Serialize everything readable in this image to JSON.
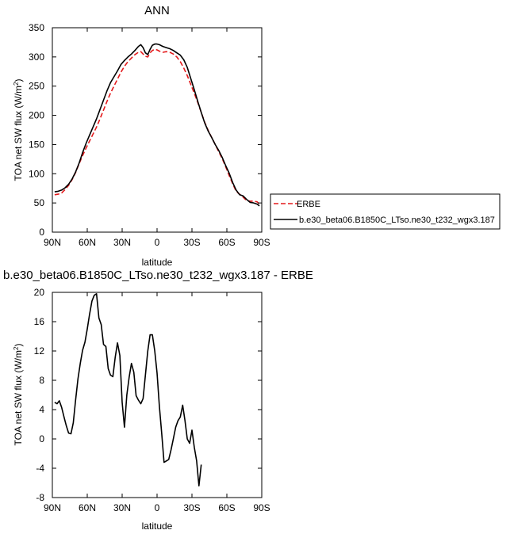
{
  "chart_data": [
    {
      "type": "line",
      "title": "ANN",
      "xlabel": "latitude",
      "ylabel": "TOA net SW flux (W/m",
      "ylabel_sup": "2",
      "ylabel_close": ")",
      "xlim": [
        90,
        -90
      ],
      "ylim": [
        0,
        350
      ],
      "xticks": [
        90,
        60,
        30,
        0,
        -30,
        -60,
        -90
      ],
      "xtick_labels": [
        "90N",
        "60N",
        "30N",
        "0",
        "30S",
        "60S",
        "90S"
      ],
      "yticks": [
        0,
        50,
        100,
        150,
        200,
        250,
        300,
        350
      ],
      "ytick_labels": [
        "0",
        "50",
        "100",
        "150",
        "200",
        "250",
        "300",
        "350"
      ],
      "legend_position": "right",
      "series": [
        {
          "name": "ERBE",
          "color": "#e41a1c",
          "dash": "dashed",
          "points": [
            [
              88,
              64
            ],
            [
              85,
              65
            ],
            [
              82,
              67
            ],
            [
              79,
              73
            ],
            [
              76,
              80
            ],
            [
              73,
              90
            ],
            [
              70,
              102
            ],
            [
              67,
              117
            ],
            [
              64,
              131
            ],
            [
              61,
              144
            ],
            [
              58,
              156
            ],
            [
              55,
              168
            ],
            [
              52,
              180
            ],
            [
              49,
              194
            ],
            [
              46,
              209
            ],
            [
              43,
              224
            ],
            [
              40,
              238
            ],
            [
              37,
              250
            ],
            [
              34,
              262
            ],
            [
              31,
              274
            ],
            [
              28,
              284
            ],
            [
              25,
              292
            ],
            [
              22,
              298
            ],
            [
              19,
              304
            ],
            [
              16,
              308
            ],
            [
              14,
              309
            ],
            [
              12,
              305
            ],
            [
              10,
              301
            ],
            [
              8,
              300
            ],
            [
              6,
              307
            ],
            [
              4,
              311
            ],
            [
              2,
              313
            ],
            [
              0,
              312
            ],
            [
              -2,
              310
            ],
            [
              -5,
              308
            ],
            [
              -8,
              309
            ],
            [
              -11,
              308
            ],
            [
              -14,
              305
            ],
            [
              -17,
              300
            ],
            [
              -20,
              292
            ],
            [
              -23,
              281
            ],
            [
              -26,
              268
            ],
            [
              -29,
              253
            ],
            [
              -32,
              238
            ],
            [
              -35,
              222
            ],
            [
              -38,
              205
            ],
            [
              -41,
              188
            ],
            [
              -44,
              174
            ],
            [
              -47,
              162
            ],
            [
              -50,
              150
            ],
            [
              -53,
              138
            ],
            [
              -56,
              126
            ],
            [
              -59,
              112
            ],
            [
              -62,
              97
            ],
            [
              -65,
              83
            ],
            [
              -68,
              70
            ],
            [
              -71,
              65
            ],
            [
              -74,
              60
            ],
            [
              -77,
              54
            ],
            [
              -80,
              53
            ],
            [
              -83,
              53
            ],
            [
              -86,
              52
            ],
            [
              -88,
              48
            ]
          ]
        },
        {
          "name": "b.e30_beta06.B1850C_LTso.ne30_t232_wgx3.187",
          "color": "#000000",
          "dash": "solid",
          "points": [
            [
              88,
              69
            ],
            [
              85,
              70
            ],
            [
              82,
              72
            ],
            [
              79,
              76
            ],
            [
              76,
              82
            ],
            [
              73,
              91
            ],
            [
              70,
              103
            ],
            [
              67,
              118
            ],
            [
              64,
              136
            ],
            [
              61,
              152
            ],
            [
              58,
              166
            ],
            [
              55,
              180
            ],
            [
              52,
              194
            ],
            [
              49,
              210
            ],
            [
              46,
              226
            ],
            [
              43,
              242
            ],
            [
              40,
              256
            ],
            [
              37,
              266
            ],
            [
              34,
              276
            ],
            [
              31,
              287
            ],
            [
              28,
              294
            ],
            [
              25,
              300
            ],
            [
              22,
              305
            ],
            [
              19,
              311
            ],
            [
              16,
              318
            ],
            [
              14,
              321
            ],
            [
              12,
              316
            ],
            [
              10,
              307
            ],
            [
              8,
              304
            ],
            [
              6,
              313
            ],
            [
              4,
              320
            ],
            [
              2,
              322
            ],
            [
              0,
              322
            ],
            [
              -2,
              321
            ],
            [
              -5,
              318
            ],
            [
              -8,
              316
            ],
            [
              -11,
              314
            ],
            [
              -14,
              311
            ],
            [
              -17,
              307
            ],
            [
              -20,
              303
            ],
            [
              -23,
              295
            ],
            [
              -26,
              282
            ],
            [
              -29,
              263
            ],
            [
              -32,
              244
            ],
            [
              -35,
              224
            ],
            [
              -38,
              205
            ],
            [
              -41,
              187
            ],
            [
              -44,
              173
            ],
            [
              -47,
              162
            ],
            [
              -50,
              150
            ],
            [
              -53,
              140
            ],
            [
              -56,
              128
            ],
            [
              -59,
              114
            ],
            [
              -62,
              101
            ],
            [
              -65,
              85
            ],
            [
              -68,
              72
            ],
            [
              -71,
              64
            ],
            [
              -74,
              62
            ],
            [
              -77,
              56
            ],
            [
              -80,
              51
            ],
            [
              -83,
              50
            ],
            [
              -86,
              48
            ],
            [
              -88,
              45
            ]
          ]
        }
      ]
    },
    {
      "type": "line",
      "title": "b.e30_beta06.B1850C_LTso.ne30_t232_wgx3.187 - ERBE",
      "xlabel": "latitude",
      "ylabel": "TOA net SW flux (W/m",
      "ylabel_sup": "2",
      "ylabel_close": ")",
      "xlim": [
        90,
        -90
      ],
      "ylim": [
        -8,
        20
      ],
      "xticks": [
        90,
        60,
        30,
        0,
        -30,
        -60,
        -90
      ],
      "xtick_labels": [
        "90N",
        "60N",
        "30N",
        "0",
        "30S",
        "60S",
        "90S"
      ],
      "yticks": [
        -8,
        -4,
        0,
        4,
        8,
        12,
        16,
        20
      ],
      "ytick_labels": [
        "-8",
        "-4",
        "0",
        "4",
        "8",
        "12",
        "16",
        "20"
      ],
      "series": [
        {
          "color": "#000000",
          "dash": "solid",
          "points": [
            [
              88,
              5.0
            ],
            [
              86,
              4.8
            ],
            [
              84,
              5.2
            ],
            [
              82,
              4.3
            ],
            [
              80,
              3.0
            ],
            [
              78,
              1.8
            ],
            [
              76,
              0.8
            ],
            [
              74,
              0.7
            ],
            [
              72,
              2.2
            ],
            [
              70,
              5.3
            ],
            [
              68,
              8.2
            ],
            [
              66,
              10.3
            ],
            [
              64,
              12.1
            ],
            [
              62,
              13.2
            ],
            [
              60,
              15.0
            ],
            [
              58,
              17.0
            ],
            [
              56,
              18.8
            ],
            [
              54,
              19.6
            ],
            [
              52,
              19.8
            ],
            [
              50,
              16.5
            ],
            [
              48,
              15.6
            ],
            [
              46,
              12.9
            ],
            [
              44,
              12.6
            ],
            [
              42,
              9.6
            ],
            [
              40,
              8.7
            ],
            [
              38,
              8.5
            ],
            [
              36,
              11.1
            ],
            [
              34,
              13.1
            ],
            [
              32,
              11.4
            ],
            [
              30,
              5.0
            ],
            [
              28,
              1.6
            ],
            [
              26,
              6.0
            ],
            [
              24,
              8.4
            ],
            [
              22,
              10.3
            ],
            [
              20,
              9.1
            ],
            [
              18,
              5.9
            ],
            [
              16,
              5.3
            ],
            [
              14,
              4.8
            ],
            [
              12,
              5.5
            ],
            [
              10,
              8.7
            ],
            [
              8,
              12.0
            ],
            [
              6,
              14.2
            ],
            [
              4,
              14.2
            ],
            [
              2,
              12.0
            ],
            [
              0,
              9.0
            ],
            [
              -2,
              4.5
            ],
            [
              -4,
              0.7
            ],
            [
              -6,
              -3.2
            ],
            [
              -8,
              -3.0
            ],
            [
              -10,
              -2.8
            ],
            [
              -12,
              -1.5
            ],
            [
              -14,
              0.0
            ],
            [
              -16,
              1.6
            ],
            [
              -18,
              2.5
            ],
            [
              -20,
              3.0
            ],
            [
              -22,
              4.6
            ],
            [
              -24,
              2.5
            ],
            [
              -26,
              0.0
            ],
            [
              -28,
              -0.6
            ],
            [
              -30,
              1.2
            ],
            [
              -32,
              -1.1
            ],
            [
              -34,
              -3.0
            ],
            [
              -36,
              -6.4
            ],
            [
              -38,
              -3.5
            ]
          ]
        }
      ]
    }
  ]
}
